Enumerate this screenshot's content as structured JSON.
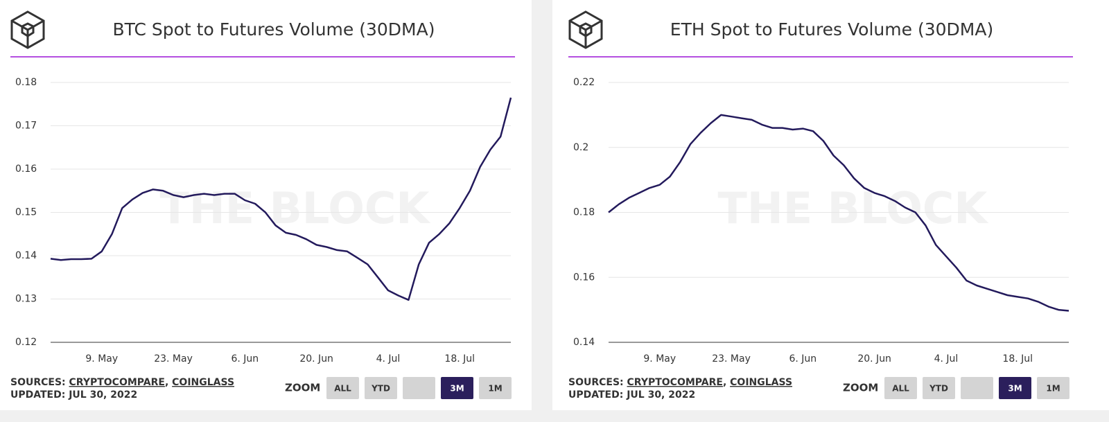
{
  "chart_data": [
    {
      "type": "line",
      "title": "BTC Spot to Futures Volume (30DMA)",
      "watermark": "THE BLOCK",
      "color": "#231a5c",
      "categories": [
        null,
        null,
        null,
        null,
        null,
        "9. May",
        null,
        null,
        null,
        null,
        null,
        null,
        "23. May",
        null,
        null,
        null,
        null,
        null,
        null,
        "6. Jun",
        null,
        null,
        null,
        null,
        null,
        null,
        "20. Jun",
        null,
        null,
        null,
        null,
        null,
        null,
        "4. Jul",
        null,
        null,
        null,
        null,
        null,
        null,
        "18. Jul",
        null,
        null,
        null,
        null,
        null
      ],
      "values": [
        0.1393,
        0.139,
        0.1392,
        0.1392,
        0.1393,
        0.141,
        0.145,
        0.151,
        0.153,
        0.1545,
        0.1553,
        0.155,
        0.154,
        0.1535,
        0.154,
        0.1543,
        0.154,
        0.1543,
        0.1543,
        0.1528,
        0.152,
        0.15,
        0.147,
        0.1453,
        0.1448,
        0.1438,
        0.1425,
        0.142,
        0.1413,
        0.141,
        0.1395,
        0.138,
        0.135,
        0.132,
        0.1308,
        0.1298,
        0.138,
        0.143,
        0.145,
        0.1475,
        0.151,
        0.155,
        0.1605,
        0.1645,
        0.1675,
        0.1765
      ],
      "ylim": [
        0.12,
        0.18
      ],
      "yticks": [
        0.12,
        0.13,
        0.14,
        0.15,
        0.16,
        0.17,
        0.18
      ],
      "grid": true
    },
    {
      "type": "line",
      "title": "ETH Spot to Futures Volume (30DMA)",
      "watermark": "THE BLOCK",
      "color": "#231a5c",
      "categories": [
        null,
        null,
        null,
        null,
        null,
        "9. May",
        null,
        null,
        null,
        null,
        null,
        null,
        "23. May",
        null,
        null,
        null,
        null,
        null,
        null,
        "6. Jun",
        null,
        null,
        null,
        null,
        null,
        null,
        "20. Jun",
        null,
        null,
        null,
        null,
        null,
        null,
        "4. Jul",
        null,
        null,
        null,
        null,
        null,
        null,
        "18. Jul",
        null,
        null,
        null,
        null,
        null
      ],
      "values": [
        0.18,
        0.1825,
        0.1845,
        0.186,
        0.1875,
        0.1885,
        0.191,
        0.1955,
        0.201,
        0.2045,
        0.2075,
        0.21,
        0.2095,
        0.209,
        0.2085,
        0.207,
        0.206,
        0.206,
        0.2055,
        0.2058,
        0.205,
        0.202,
        0.1975,
        0.1945,
        0.1905,
        0.1875,
        0.186,
        0.185,
        0.1835,
        0.1815,
        0.18,
        0.176,
        0.17,
        0.1665,
        0.163,
        0.159,
        0.1575,
        0.1565,
        0.1555,
        0.1545,
        0.154,
        0.1535,
        0.1525,
        0.151,
        0.15,
        0.1497
      ],
      "ylim": [
        0.14,
        0.22
      ],
      "yticks": [
        0.14,
        0.16,
        0.18,
        {
          "value": 0.2,
          "label": "0.2"
        },
        0.22
      ],
      "grid": true
    }
  ],
  "footer": [
    {
      "source_label": "SOURCES:",
      "sources": [
        "CRYPTOCOMPARE",
        "COINGLASS"
      ],
      "separator": ",",
      "updated": "UPDATED: JUL 30, 2022",
      "zoom_label": "ZOOM",
      "buttons": [
        "ALL",
        "YTD",
        null,
        "3M",
        "1M"
      ],
      "active": 3
    },
    {
      "source_label": "SOURCES:",
      "sources": [
        "CRYPTOCOMPARE",
        "COINGLASS"
      ],
      "separator": ",",
      "updated": "UPDATED: JUL 30, 2022",
      "zoom_label": "ZOOM",
      "buttons": [
        "ALL",
        "YTD",
        null,
        "3M",
        "1M"
      ],
      "active": 3
    }
  ]
}
